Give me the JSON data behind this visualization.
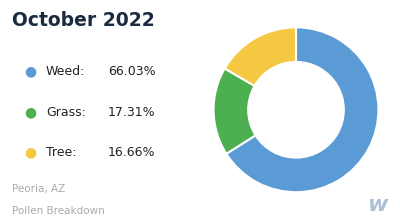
{
  "title": "October 2022",
  "subtitle_line1": "Peoria, AZ",
  "subtitle_line2": "Pollen Breakdown",
  "slices": [
    66.03,
    17.31,
    16.66
  ],
  "labels": [
    "Weed",
    "Grass",
    "Tree"
  ],
  "percentages": [
    "66.03%",
    "17.31%",
    "16.66%"
  ],
  "colors": [
    "#5B9BD5",
    "#4CAF50",
    "#F5C842"
  ],
  "background_color": "#ffffff",
  "title_color": "#1A2B40",
  "legend_text_color": "#222222",
  "subtitle_color": "#AAAAAA",
  "watermark_color": "#B0C0D8",
  "startangle": 90,
  "donut_width": 0.42
}
